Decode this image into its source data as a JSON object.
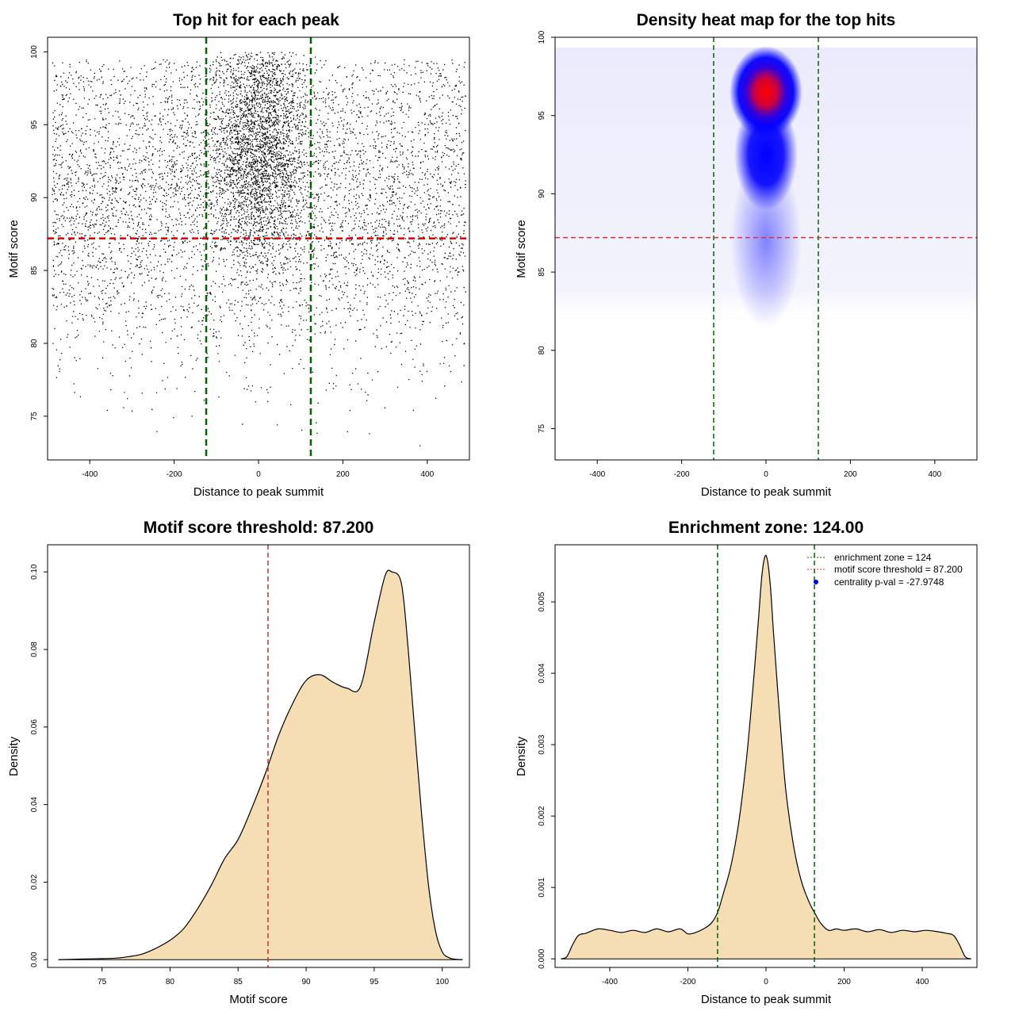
{
  "chart_data": [
    {
      "id": "scatter",
      "type": "scatter",
      "title": "Top hit for each peak",
      "xlabel": "Distance to peak summit",
      "ylabel": "Motif score",
      "xlim": [
        -500,
        500
      ],
      "ylim": [
        72,
        101
      ],
      "xticks": [
        -400,
        -200,
        0,
        200,
        400
      ],
      "yticks": [
        75,
        80,
        85,
        90,
        95,
        100
      ],
      "description_points": "dense cloud of top motif hits; uniform background from x=-490 to 490 with scores ~78-99, concentrated cluster around x=0 (sd ~55) with scores 85-100",
      "cluster": {
        "x_center": 0,
        "x_sd": 55,
        "y_center": 93.5,
        "y_sd": 3.8,
        "y_max": 100
      },
      "background": {
        "x_range": [
          -490,
          490
        ],
        "y_center": 90,
        "y_sd": 5.5,
        "y_max": 99.5
      },
      "vlines": [
        -124,
        124
      ],
      "hline": 87.2,
      "vline_color": "#006400",
      "hline_color": "#dd0000"
    },
    {
      "id": "heatmap",
      "type": "heatmap",
      "title": "Density heat map for the top hits",
      "xlabel": "Distance to peak summit",
      "ylabel": "Motif score",
      "xlim": [
        -500,
        500
      ],
      "ylim": [
        73,
        100
      ],
      "xticks": [
        -400,
        -200,
        0,
        200,
        400
      ],
      "yticks": [
        75,
        80,
        85,
        90,
        95,
        100
      ],
      "peak": {
        "x": 0,
        "y": 96.5
      },
      "colors": [
        "#ffffff",
        "#0000ff",
        "#ff0000"
      ],
      "vlines": [
        -124,
        124
      ],
      "hline": 87.2,
      "vline_color": "#006400",
      "hline_color": "#dd3333"
    },
    {
      "id": "density-score",
      "type": "area",
      "title": "Motif score threshold: 87.200",
      "xlabel": "Motif score",
      "ylabel": "Density",
      "xlim": [
        71,
        102
      ],
      "ylim": [
        -0.002,
        0.107
      ],
      "xticks": [
        75,
        80,
        85,
        90,
        95,
        100
      ],
      "yticks": [
        0.0,
        0.02,
        0.04,
        0.06,
        0.08,
        0.1
      ],
      "ytick_labels": [
        "0.00",
        "0.02",
        "0.04",
        "0.06",
        "0.08",
        "0.10"
      ],
      "x": [
        71.8,
        74,
        76,
        77,
        78,
        79,
        80,
        81,
        82,
        83,
        84,
        85,
        86,
        87,
        88,
        89,
        90,
        91,
        92,
        93,
        94,
        95,
        95.8,
        96.3,
        97,
        97.5,
        98,
        98.5,
        99,
        99.5,
        100,
        100.5,
        101,
        101.5
      ],
      "y": [
        0.0,
        0.0002,
        0.0004,
        0.0008,
        0.0015,
        0.003,
        0.005,
        0.008,
        0.013,
        0.019,
        0.026,
        0.031,
        0.039,
        0.048,
        0.058,
        0.066,
        0.072,
        0.0735,
        0.0715,
        0.07,
        0.0705,
        0.087,
        0.099,
        0.1,
        0.097,
        0.08,
        0.058,
        0.037,
        0.019,
        0.0075,
        0.002,
        0.0005,
        0.0001,
        0.0
      ],
      "fill": "#f5deb3",
      "vlines": [
        87.2
      ],
      "vline_color": "#cc3333"
    },
    {
      "id": "density-distance",
      "type": "area",
      "title": "Enrichment zone: 124.00",
      "xlabel": "Distance to peak summit",
      "ylabel": "Density",
      "xlim": [
        -540,
        540
      ],
      "ylim": [
        -0.00012,
        0.0058
      ],
      "xticks": [
        -400,
        -200,
        0,
        200,
        400
      ],
      "yticks": [
        0.0,
        0.001,
        0.002,
        0.003,
        0.004,
        0.005
      ],
      "ytick_labels": [
        "0.000",
        "0.001",
        "0.002",
        "0.003",
        "0.004",
        "0.005"
      ],
      "x": [
        -525,
        -510,
        -495,
        -480,
        -460,
        -430,
        -400,
        -370,
        -340,
        -310,
        -280,
        -250,
        -220,
        -200,
        -180,
        -160,
        -140,
        -124,
        -110,
        -90,
        -70,
        -50,
        -35,
        -20,
        -10,
        0,
        10,
        20,
        35,
        50,
        70,
        90,
        110,
        124,
        140,
        160,
        180,
        200,
        230,
        260,
        290,
        320,
        350,
        380,
        410,
        440,
        460,
        480,
        495,
        510,
        525
      ],
      "y": [
        0.0,
        3e-05,
        0.0002,
        0.00033,
        0.00036,
        0.00042,
        0.0004,
        0.00037,
        0.0004,
        0.00037,
        0.00042,
        0.00038,
        0.00042,
        0.00035,
        0.00037,
        0.00042,
        0.0005,
        0.00065,
        0.0009,
        0.0013,
        0.0019,
        0.0028,
        0.0037,
        0.0047,
        0.0054,
        0.00565,
        0.0053,
        0.0045,
        0.0034,
        0.0024,
        0.0016,
        0.0011,
        0.0008,
        0.00065,
        0.0005,
        0.0004,
        0.00042,
        0.0004,
        0.00042,
        0.00038,
        0.00041,
        0.00037,
        0.0004,
        0.00038,
        0.0004,
        0.00038,
        0.00036,
        0.00033,
        0.0002,
        3e-05,
        0.0
      ],
      "fill": "#f5deb3",
      "vlines": [
        -124,
        124
      ],
      "vline_color": "#006400",
      "legend": [
        {
          "label": "enrichment zone = 124",
          "kind": "line",
          "color": "#006400"
        },
        {
          "label": "motif score threshold = 87.200",
          "kind": "line",
          "color": "#dd3333"
        },
        {
          "label": "centrality p-val = -27.9748",
          "kind": "point",
          "color": "#0000ff"
        }
      ]
    }
  ]
}
